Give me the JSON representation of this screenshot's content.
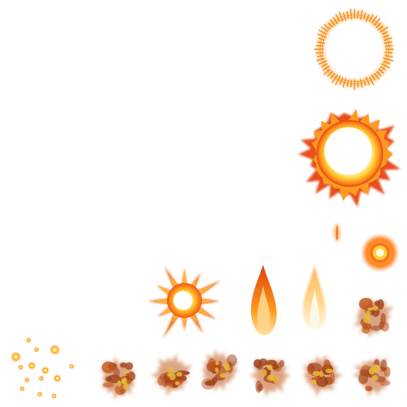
{
  "sprite_sheet": {
    "background": "#ffffff",
    "palette": {
      "core": "#fffbe6",
      "yellow": "#ffd23a",
      "orange": "#ff8a1a",
      "deep_orange": "#f2560f",
      "red": "#d8401a",
      "smoke_dark": "#9c3f17",
      "smoke_mid": "#c0581f",
      "ember": "#e8b83a"
    },
    "sprites": [
      {
        "name": "fire-ring-sprite",
        "kind": "ring"
      },
      {
        "name": "fireball-explosion-sprite",
        "kind": "explosion"
      },
      {
        "name": "spark-small-sprite",
        "kind": "spark"
      },
      {
        "name": "glow-orb-sprite",
        "kind": "orb"
      },
      {
        "name": "starburst-sprite",
        "kind": "starburst"
      },
      {
        "name": "flame-jet-sprite",
        "kind": "flame"
      },
      {
        "name": "flame-faint-sprite",
        "kind": "flame"
      },
      {
        "name": "ember-particles-sprite",
        "kind": "particles"
      },
      {
        "name": "smoke-frame-sprite",
        "kind": "smoke",
        "count": 7
      }
    ]
  }
}
